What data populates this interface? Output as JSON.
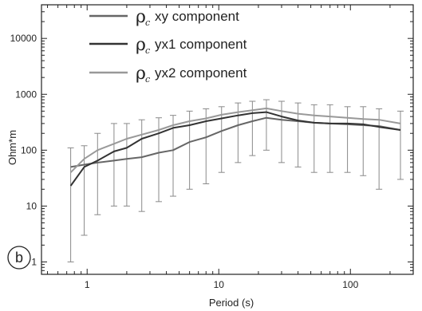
{
  "chart_data": {
    "type": "line",
    "xlabel": "Period (s)",
    "ylabel": "Ohm*m",
    "x_scale": "log",
    "y_scale": "log",
    "xlim": [
      0.45,
      300
    ],
    "ylim": [
      0.6,
      40000
    ],
    "x_ticks": [
      1,
      10,
      100
    ],
    "x_tick_labels": [
      "1",
      "10",
      "100"
    ],
    "y_ticks": [
      1,
      10,
      100,
      1000,
      10000
    ],
    "y_tick_labels": [
      "1",
      "10",
      "100",
      "1000",
      "10000"
    ],
    "grid": false,
    "legend_position": "top-left",
    "panel_label": "b",
    "x": [
      0.75,
      0.95,
      1.2,
      1.6,
      2.0,
      2.6,
      3.5,
      4.5,
      6.0,
      8.0,
      10.5,
      14,
      18,
      23,
      30,
      40,
      53,
      70,
      95,
      125,
      165,
      240
    ],
    "series": [
      {
        "name": "xy component",
        "color": "#666666",
        "values": [
          50,
          55,
          60,
          65,
          70,
          75,
          90,
          100,
          140,
          170,
          220,
          280,
          330,
          380,
          350,
          330,
          310,
          300,
          290,
          280,
          270,
          230
        ],
        "error_low": [
          1,
          3,
          7,
          10,
          10,
          8,
          12,
          15,
          20,
          25,
          40,
          60,
          80,
          100,
          60,
          50,
          40,
          40,
          40,
          35,
          20,
          30
        ],
        "error_high": [
          110,
          120,
          200,
          300,
          300,
          350,
          380,
          420,
          500,
          550,
          600,
          700,
          750,
          800,
          750,
          700,
          650,
          650,
          600,
          600,
          550,
          500
        ]
      },
      {
        "name": "yx1 component",
        "color": "#333333",
        "values": [
          23,
          50,
          65,
          95,
          110,
          160,
          200,
          250,
          280,
          330,
          370,
          420,
          460,
          480,
          400,
          340,
          310,
          300,
          300,
          290,
          260,
          230
        ]
      },
      {
        "name": "yx2 component",
        "color": "#999999",
        "values": [
          40,
          70,
          100,
          130,
          160,
          190,
          230,
          280,
          330,
          370,
          430,
          480,
          520,
          560,
          500,
          450,
          420,
          400,
          380,
          360,
          350,
          300
        ]
      }
    ]
  }
}
